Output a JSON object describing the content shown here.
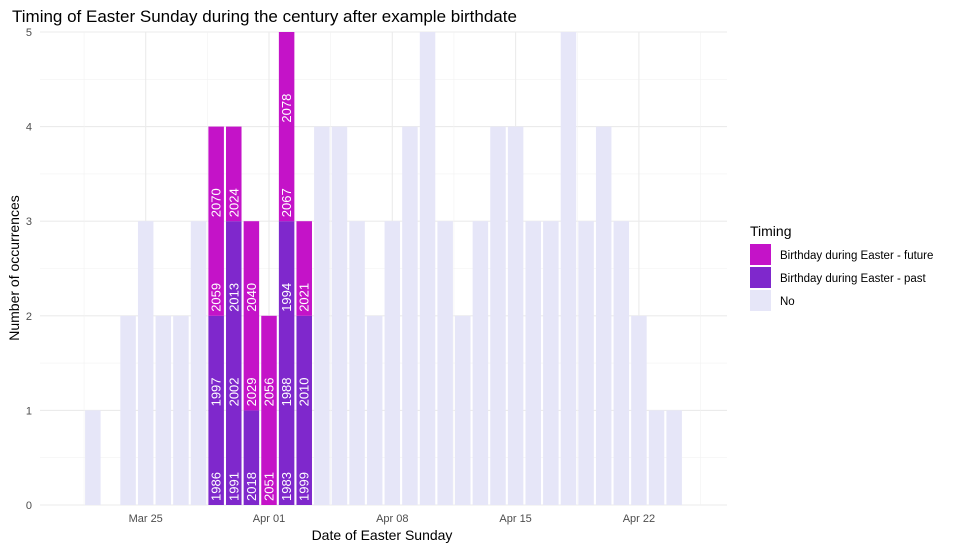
{
  "chart_data": {
    "type": "bar",
    "stacked": true,
    "title": "Timing of Easter Sunday during the century after example birthdate",
    "xlabel": "Date of Easter Sunday",
    "ylabel": "Number of occurrences",
    "ylim": [
      0,
      5
    ],
    "yticks": [
      "0",
      "1",
      "2",
      "3",
      "4",
      "5"
    ],
    "x_domain": [
      "2000-03-19",
      "2000-04-27"
    ],
    "xticks": [
      {
        "date": "2000-03-25",
        "label": "Mar 25"
      },
      {
        "date": "2000-04-01",
        "label": "Apr 01"
      },
      {
        "date": "2000-04-08",
        "label": "Apr 08"
      },
      {
        "date": "2000-04-15",
        "label": "Apr 15"
      },
      {
        "date": "2000-04-22",
        "label": "Apr 22"
      }
    ],
    "grid": true,
    "legend": {
      "title": "Timing",
      "position": "right",
      "entries": [
        {
          "key": "future",
          "label": "Birthday during Easter - future",
          "color": "#c413c8"
        },
        {
          "key": "past",
          "label": "Birthday during Easter - past",
          "color": "#7f28cc"
        },
        {
          "key": "no",
          "label": "No",
          "color": "#e6e6f8"
        }
      ]
    },
    "bars": [
      {
        "date": "2000-03-22",
        "segments": [
          {
            "key": "no",
            "count": 1
          }
        ]
      },
      {
        "date": "2000-03-24",
        "segments": [
          {
            "key": "no",
            "count": 2
          }
        ]
      },
      {
        "date": "2000-03-25",
        "segments": [
          {
            "key": "no",
            "count": 3
          }
        ]
      },
      {
        "date": "2000-03-26",
        "segments": [
          {
            "key": "no",
            "count": 2
          }
        ]
      },
      {
        "date": "2000-03-27",
        "segments": [
          {
            "key": "no",
            "count": 2
          }
        ]
      },
      {
        "date": "2000-03-28",
        "segments": [
          {
            "key": "no",
            "count": 3
          }
        ]
      },
      {
        "date": "2000-03-29",
        "segments": [
          {
            "key": "past",
            "count": 2,
            "years": [
              "1986",
              "1997"
            ]
          },
          {
            "key": "future",
            "count": 2,
            "years": [
              "2059",
              "2070"
            ]
          }
        ]
      },
      {
        "date": "2000-03-30",
        "segments": [
          {
            "key": "past",
            "count": 3,
            "years": [
              "1991",
              "2002",
              "2013"
            ]
          },
          {
            "key": "future",
            "count": 1,
            "years": [
              "2024"
            ]
          }
        ]
      },
      {
        "date": "2000-03-31",
        "segments": [
          {
            "key": "past",
            "count": 1,
            "years": [
              "2018"
            ]
          },
          {
            "key": "future",
            "count": 2,
            "years": [
              "2029",
              "2040"
            ]
          }
        ]
      },
      {
        "date": "2000-04-01",
        "segments": [
          {
            "key": "future",
            "count": 2,
            "years": [
              "2051",
              "2056"
            ]
          }
        ]
      },
      {
        "date": "2000-04-02",
        "segments": [
          {
            "key": "past",
            "count": 3,
            "years": [
              "1983",
              "1988",
              "1994"
            ]
          },
          {
            "key": "future",
            "count": 2,
            "years": [
              "2067",
              "2078"
            ]
          }
        ]
      },
      {
        "date": "2000-04-03",
        "segments": [
          {
            "key": "past",
            "count": 2,
            "years": [
              "1999",
              "2010"
            ]
          },
          {
            "key": "future",
            "count": 1,
            "years": [
              "2021"
            ]
          }
        ]
      },
      {
        "date": "2000-04-04",
        "segments": [
          {
            "key": "no",
            "count": 4
          }
        ]
      },
      {
        "date": "2000-04-05",
        "segments": [
          {
            "key": "no",
            "count": 4
          }
        ]
      },
      {
        "date": "2000-04-06",
        "segments": [
          {
            "key": "no",
            "count": 3
          }
        ]
      },
      {
        "date": "2000-04-07",
        "segments": [
          {
            "key": "no",
            "count": 2
          }
        ]
      },
      {
        "date": "2000-04-08",
        "segments": [
          {
            "key": "no",
            "count": 3
          }
        ]
      },
      {
        "date": "2000-04-09",
        "segments": [
          {
            "key": "no",
            "count": 4
          }
        ]
      },
      {
        "date": "2000-04-10",
        "segments": [
          {
            "key": "no",
            "count": 5
          }
        ]
      },
      {
        "date": "2000-04-11",
        "segments": [
          {
            "key": "no",
            "count": 3
          }
        ]
      },
      {
        "date": "2000-04-12",
        "segments": [
          {
            "key": "no",
            "count": 2
          }
        ]
      },
      {
        "date": "2000-04-13",
        "segments": [
          {
            "key": "no",
            "count": 3
          }
        ]
      },
      {
        "date": "2000-04-14",
        "segments": [
          {
            "key": "no",
            "count": 4
          }
        ]
      },
      {
        "date": "2000-04-15",
        "segments": [
          {
            "key": "no",
            "count": 4
          }
        ]
      },
      {
        "date": "2000-04-16",
        "segments": [
          {
            "key": "no",
            "count": 3
          }
        ]
      },
      {
        "date": "2000-04-17",
        "segments": [
          {
            "key": "no",
            "count": 3
          }
        ]
      },
      {
        "date": "2000-04-18",
        "segments": [
          {
            "key": "no",
            "count": 5
          }
        ]
      },
      {
        "date": "2000-04-19",
        "segments": [
          {
            "key": "no",
            "count": 3
          }
        ]
      },
      {
        "date": "2000-04-20",
        "segments": [
          {
            "key": "no",
            "count": 4
          }
        ]
      },
      {
        "date": "2000-04-21",
        "segments": [
          {
            "key": "no",
            "count": 3
          }
        ]
      },
      {
        "date": "2000-04-22",
        "segments": [
          {
            "key": "no",
            "count": 2
          }
        ]
      },
      {
        "date": "2000-04-23",
        "segments": [
          {
            "key": "no",
            "count": 1
          }
        ]
      },
      {
        "date": "2000-04-24",
        "segments": [
          {
            "key": "no",
            "count": 1
          }
        ]
      }
    ]
  }
}
